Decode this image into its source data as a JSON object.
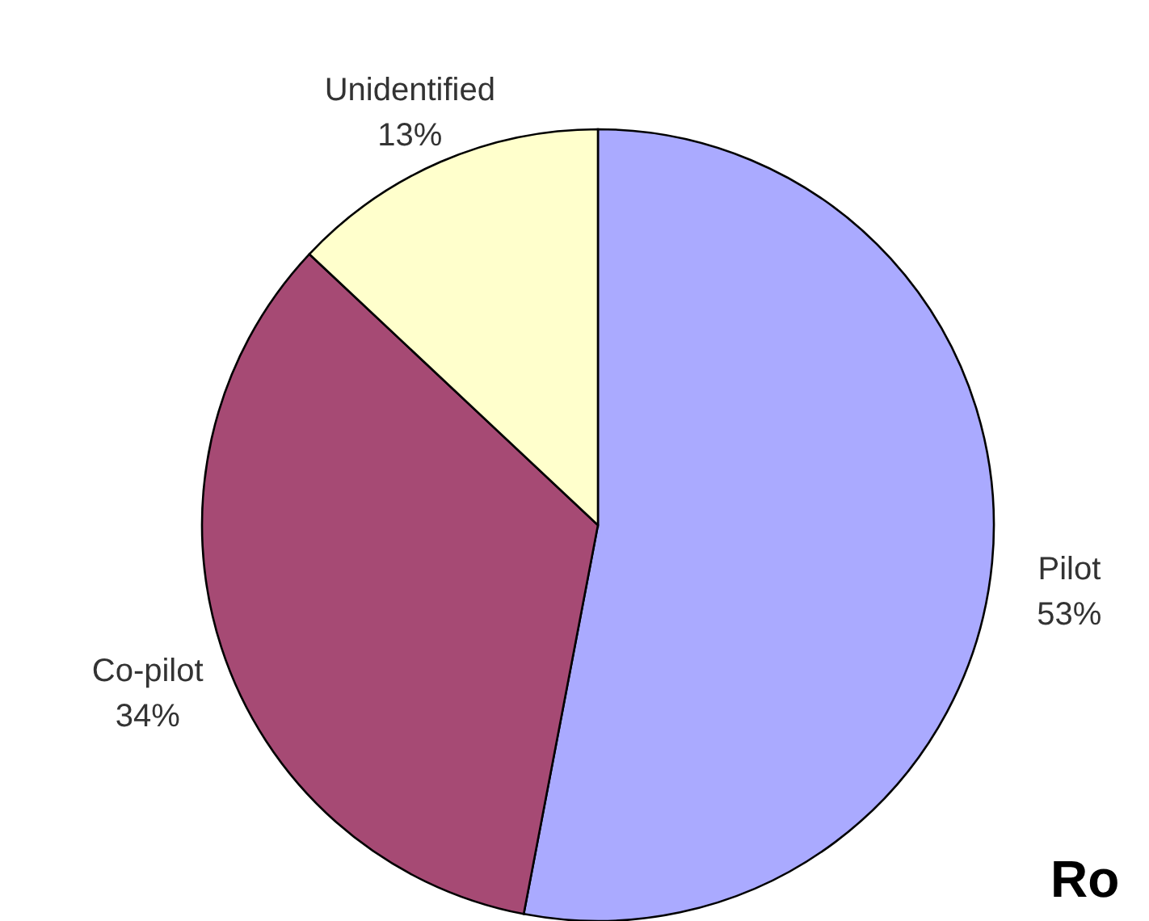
{
  "chart_data": {
    "type": "pie",
    "categories": [
      "Pilot",
      "Co-pilot",
      "Unidentified"
    ],
    "values": [
      53,
      34,
      13
    ],
    "colors": [
      "#aaaaff",
      "#a64a74",
      "#ffffcc"
    ],
    "value_labels": [
      "53%",
      "34%",
      "13%"
    ],
    "annotations": [
      "Ro"
    ]
  }
}
